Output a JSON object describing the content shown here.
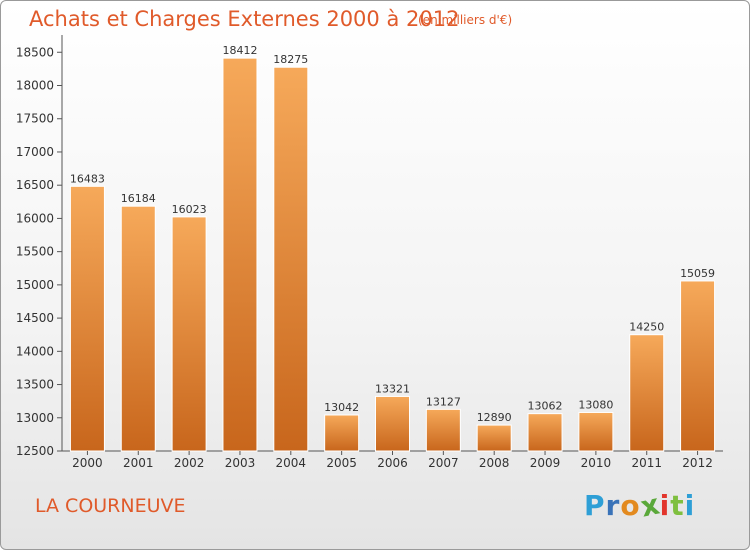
{
  "title": "Achats et Charges Externes 2000 à 2012",
  "subtitle": "(en milliers d'€)",
  "place": "LA COURNEUVE",
  "logo": {
    "text": "Proxiti",
    "letters": [
      "P",
      "r",
      "o",
      "x",
      "i",
      "t",
      "i"
    ],
    "colors": [
      "#2e9fd6",
      "#3a73b8",
      "#e38a1f",
      "#5aa83a",
      "#e2352c",
      "#7fbf3f",
      "#2e9fd6"
    ]
  },
  "colors": {
    "bar_light": "#f6a95a",
    "bar_dark": "#c8661c",
    "text": "#333333",
    "title": "#e05a2a"
  },
  "chart_data": {
    "type": "bar",
    "categories": [
      "2000",
      "2001",
      "2002",
      "2003",
      "2004",
      "2005",
      "2006",
      "2007",
      "2008",
      "2009",
      "2010",
      "2011",
      "2012"
    ],
    "values": [
      16483,
      16184,
      16023,
      18412,
      18275,
      13042,
      13321,
      13127,
      12890,
      13062,
      13080,
      14250,
      15059
    ],
    "yticks": [
      12500,
      13000,
      13500,
      14000,
      14500,
      15000,
      15500,
      16000,
      16500,
      17000,
      17500,
      18000,
      18500
    ],
    "ylim": [
      12500,
      18700
    ],
    "grid": false,
    "legend": "none"
  }
}
